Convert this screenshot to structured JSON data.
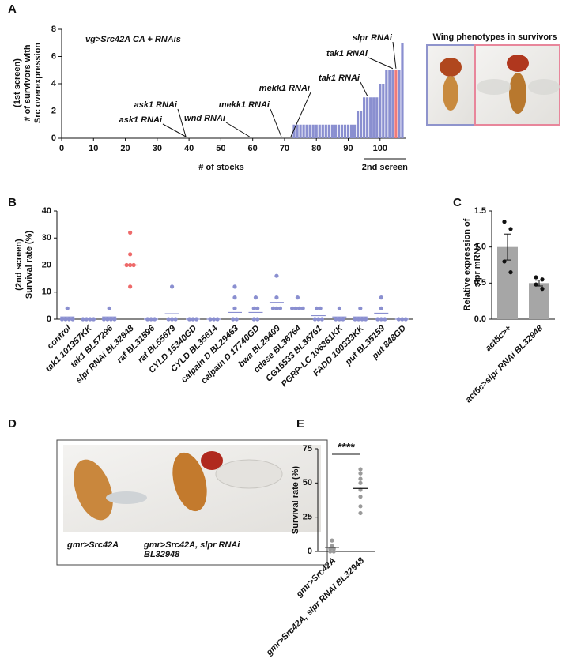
{
  "chart_data": [
    {
      "type": "bar",
      "panel": "A",
      "subtitle": "vg>Src42A CA + RNAis",
      "ylabel": [
        "(1st screen)",
        "# of survivors with",
        "Src overexpression"
      ],
      "xlabel": "# of stocks",
      "x": [
        73,
        74,
        75,
        76,
        77,
        78,
        79,
        80,
        81,
        82,
        83,
        84,
        85,
        86,
        87,
        88,
        89,
        90,
        91,
        92,
        93,
        94,
        95,
        96,
        97,
        98,
        99,
        100,
        101,
        102,
        103,
        104,
        105,
        106,
        107
      ],
      "values": [
        1,
        1,
        1,
        1,
        1,
        1,
        1,
        1,
        1,
        1,
        1,
        1,
        1,
        1,
        1,
        1,
        1,
        1,
        1,
        1,
        2,
        2,
        3,
        3,
        3,
        3,
        3,
        4,
        4,
        5,
        5,
        5,
        5,
        5,
        7
      ],
      "colors": [
        "#8a8fd0",
        "#8a8fd0",
        "#8a8fd0",
        "#8a8fd0",
        "#8a8fd0",
        "#8a8fd0",
        "#8a8fd0",
        "#8a8fd0",
        "#8a8fd0",
        "#8a8fd0",
        "#8a8fd0",
        "#8a8fd0",
        "#8a8fd0",
        "#8a8fd0",
        "#8a8fd0",
        "#8a8fd0",
        "#8a8fd0",
        "#8a8fd0",
        "#8a8fd0",
        "#8a8fd0",
        "#8a8fd0",
        "#8a8fd0",
        "#8a8fd0",
        "#8a8fd0",
        "#8a8fd0",
        "#8a8fd0",
        "#8a8fd0",
        "#8a8fd0",
        "#8a8fd0",
        "#8a8fd0",
        "#8a8fd0",
        "#8a8fd0",
        "#f07a7a",
        "#8a8fd0",
        "#8a8fd0"
      ],
      "xlim": [
        0,
        108
      ],
      "ylim": [
        0,
        8
      ],
      "xticks": [
        0,
        10,
        20,
        30,
        40,
        50,
        60,
        70,
        80,
        90,
        100
      ],
      "yticks": [
        0,
        2,
        4,
        6,
        8
      ],
      "annotations": [
        {
          "text": "ask1 RNAi",
          "x": 39,
          "y": 0
        },
        {
          "text": "ask1 RNAi",
          "x": 39,
          "y": 0
        },
        {
          "text": "wnd RNAi",
          "x": 59,
          "y": 0
        },
        {
          "text": "mekk1 RNAi",
          "x": 69,
          "y": 0
        },
        {
          "text": "mekk1 RNAi",
          "x": 72,
          "y": 0
        },
        {
          "text": "tak1 RNAi",
          "x": 96,
          "y": 3
        },
        {
          "text": "tak1 RNAi",
          "x": 104,
          "y": 5
        },
        {
          "text": "slpr RNAi",
          "x": 105,
          "y": 5
        }
      ],
      "bracket": {
        "label": "2nd screen",
        "from": 95,
        "to": 108
      },
      "inset_title": "Wing phenotypes in survivors"
    },
    {
      "type": "dot",
      "panel": "B",
      "ylabel": [
        "(2nd screen)",
        "Survival rate (%)"
      ],
      "categories": [
        "control",
        "tak1 101357KK",
        "tak1 BL57296",
        "slpr RNAi BL32948",
        "raf BL31596",
        "raf BL55679",
        "CYLD 15340GD",
        "CYLD BL35614",
        "calpain D BL29463",
        "calpain D 17740GD",
        "bwa BL29409",
        "cdase BL36764",
        "CG15533 BL36761",
        "PGRP-LC 106361KK",
        "FADD 100333KK",
        "put BL35159",
        "put 848GD"
      ],
      "points": [
        [
          4,
          0,
          0,
          0,
          0
        ],
        [
          0,
          0,
          0,
          0
        ],
        [
          4,
          0,
          0,
          0,
          0
        ],
        [
          32,
          24,
          20,
          20,
          20,
          12
        ],
        [
          0,
          0,
          0
        ],
        [
          12,
          0,
          0,
          0
        ],
        [
          0,
          0,
          0
        ],
        [
          0,
          0,
          0
        ],
        [
          12,
          8,
          4,
          0,
          0
        ],
        [
          8,
          4,
          4,
          0,
          0
        ],
        [
          16,
          8,
          4,
          4,
          4
        ],
        [
          8,
          4,
          4,
          4,
          4
        ],
        [
          4,
          4,
          0,
          0,
          0
        ],
        [
          4,
          0,
          0,
          0
        ],
        [
          4,
          0,
          0,
          0,
          0
        ],
        [
          8,
          4,
          0,
          0,
          0
        ],
        [
          0,
          0,
          0
        ]
      ],
      "means": [
        0.8,
        0,
        0.8,
        20,
        0,
        2,
        0,
        0,
        2.5,
        2.5,
        6.2,
        4,
        1.3,
        0.8,
        0.8,
        2.2,
        0
      ],
      "colors": [
        "#8a8fd0",
        "#8a8fd0",
        "#8a8fd0",
        "#ee6a6a",
        "#8a8fd0",
        "#8a8fd0",
        "#8a8fd0",
        "#8a8fd0",
        "#8a8fd0",
        "#8a8fd0",
        "#8a8fd0",
        "#8a8fd0",
        "#8a8fd0",
        "#8a8fd0",
        "#8a8fd0",
        "#8a8fd0",
        "#8a8fd0"
      ],
      "ylim": [
        0,
        40
      ],
      "yticks": [
        0,
        10,
        20,
        30,
        40
      ]
    },
    {
      "type": "bar_error",
      "panel": "C",
      "ylabel": [
        "Relative expression of",
        "slpr mRNA"
      ],
      "categories": [
        "act5c>+",
        "act5c>slpr RNAi BL32948"
      ],
      "values": [
        1.0,
        0.5
      ],
      "errors": [
        0.18,
        0.04
      ],
      "points": [
        [
          1.35,
          1.25,
          0.8,
          0.65
        ],
        [
          0.58,
          0.55,
          0.48,
          0.42
        ]
      ],
      "color": "#a6a6a6",
      "ylim": [
        0,
        1.5
      ],
      "yticks": [
        {
          "value": 0,
          "label": "0.0"
        },
        0.5,
        {
          "value": 1,
          "label": "1.0"
        },
        1.5
      ]
    },
    {
      "type": "photo",
      "panel": "D",
      "captions": [
        "gmr>Src42A",
        "gmr>Src42A, slpr RNAi BL32948"
      ]
    },
    {
      "type": "dot",
      "panel": "E",
      "ylabel": [
        "Survival rate (%)"
      ],
      "categories": [
        "gmr>Src42A",
        "gmr>Src42A, slpr RNAi BL32948"
      ],
      "points": [
        [
          8,
          4,
          2,
          2,
          0,
          0
        ],
        [
          60,
          57,
          53,
          50,
          45,
          40,
          33,
          28
        ]
      ],
      "means": [
        3,
        46
      ],
      "colors": [
        "#9a9a9a",
        "#9a9a9a"
      ],
      "ylim": [
        0,
        75
      ],
      "yticks": [
        0,
        25,
        50,
        75
      ],
      "significance": "****"
    }
  ]
}
